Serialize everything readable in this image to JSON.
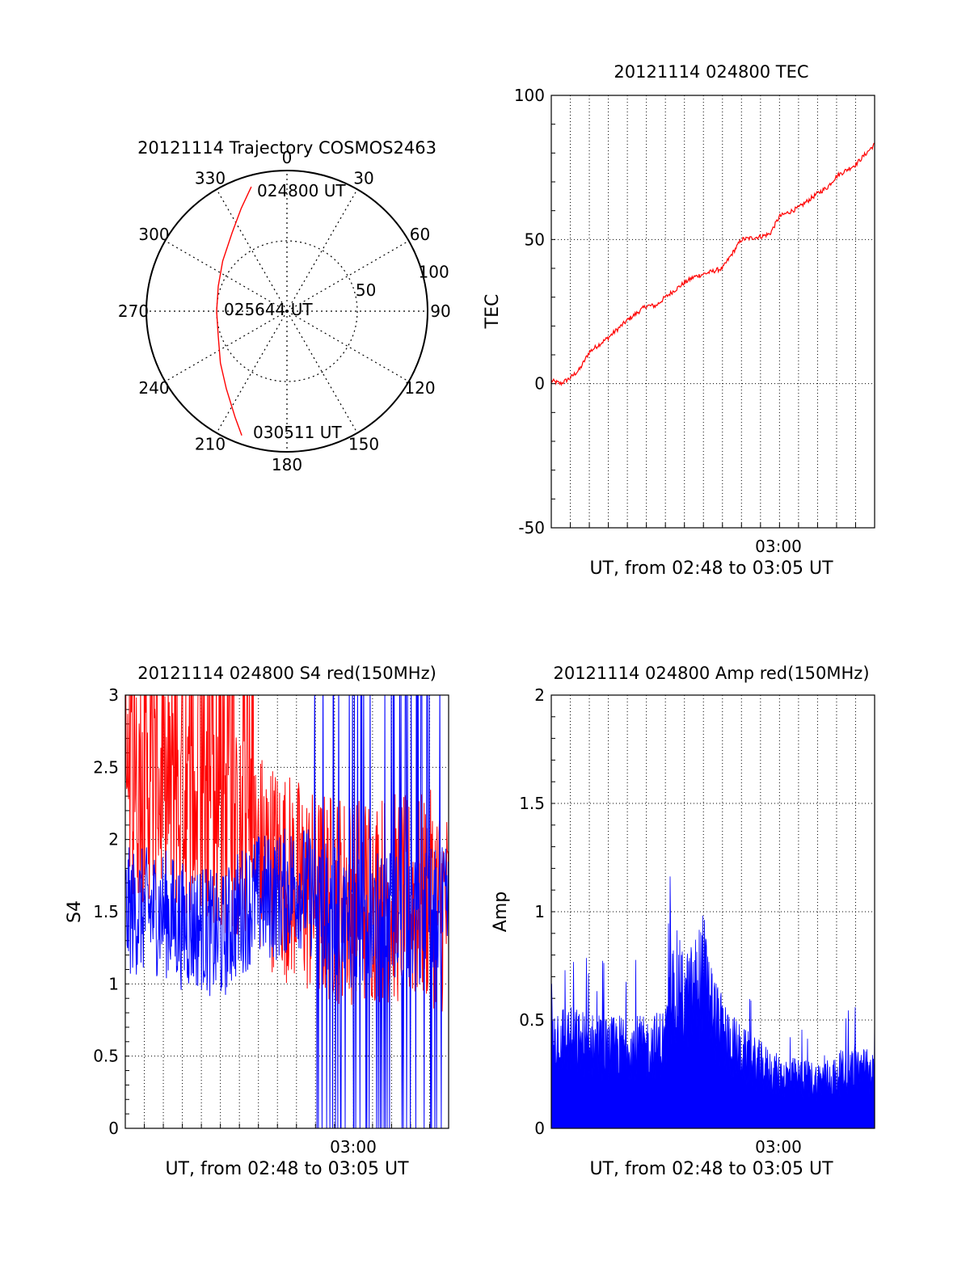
{
  "chart_data": [
    {
      "id": "trajectory",
      "type": "polar",
      "title": "20121114 Trajectory COSMOS2463",
      "azimuth_labels": [
        "0",
        "30",
        "60",
        "90",
        "120",
        "150",
        "180",
        "210",
        "240",
        "270",
        "300",
        "330"
      ],
      "radial_labels": [
        "50",
        "100"
      ],
      "radial_max": 100,
      "annotations": [
        "024800 UT",
        "025644 UT",
        "030511 UT"
      ],
      "track_color": "#ff0000",
      "track": [
        {
          "az": 344,
          "r": 92
        },
        {
          "az": 336,
          "r": 80
        },
        {
          "az": 325,
          "r": 68
        },
        {
          "az": 308,
          "r": 58
        },
        {
          "az": 290,
          "r": 52
        },
        {
          "az": 270,
          "r": 50
        },
        {
          "az": 250,
          "r": 52
        },
        {
          "az": 232,
          "r": 60
        },
        {
          "az": 218,
          "r": 70
        },
        {
          "az": 206,
          "r": 84
        },
        {
          "az": 200,
          "r": 94
        }
      ]
    },
    {
      "id": "tec",
      "type": "line",
      "title": "20121114 024800 TEC",
      "xlabel": "UT, from 02:48 to 03:05 UT",
      "ylabel": "TEC",
      "xlim": [
        "02:48",
        "03:05"
      ],
      "ylim": [
        -50,
        100
      ],
      "yticks": [
        "100",
        "50",
        "0",
        "-50"
      ],
      "xtick_label": "03:00",
      "grid": true,
      "series": [
        {
          "color": "#ff0000",
          "x": [
            "02:48",
            "02:48:30",
            "02:49",
            "02:49:30",
            "02:50",
            "02:51",
            "02:52",
            "02:53",
            "02:53:30",
            "02:54",
            "02:55",
            "02:55:30",
            "02:56",
            "02:57",
            "02:57:30",
            "02:58",
            "02:59",
            "02:59:30",
            "03:00",
            "03:01",
            "03:02",
            "03:02:30",
            "03:03",
            "03:04",
            "03:05"
          ],
          "values": [
            1,
            0,
            2,
            5,
            11,
            16,
            22,
            27,
            27,
            30,
            35,
            37,
            38,
            40,
            45,
            50,
            51,
            52,
            58,
            61,
            66,
            68,
            72,
            76,
            83
          ]
        }
      ]
    },
    {
      "id": "s4",
      "type": "line",
      "title": "20121114 024800 S4 red(150MHz)",
      "xlabel": "UT, from 02:48 to 03:05 UT",
      "ylabel": "S4",
      "xlim": [
        "02:48",
        "03:05"
      ],
      "ylim": [
        0,
        3
      ],
      "yticks": [
        "3",
        "2.5",
        "2",
        "1.5",
        "1",
        "0.5",
        "0"
      ],
      "xtick_label": "03:00",
      "grid": true,
      "series": [
        {
          "color": "#ff0000",
          "x": [
            "02:48",
            "02:49",
            "02:50",
            "02:51",
            "02:52",
            "02:53",
            "02:54",
            "02:55",
            "02:56",
            "02:57",
            "02:58",
            "02:59",
            "03:00",
            "03:01",
            "03:02",
            "03:03",
            "03:04",
            "03:05"
          ],
          "values": [
            2.4,
            2.3,
            2.3,
            2.2,
            2.2,
            2.1,
            2.0,
            1.9,
            1.8,
            1.7,
            1.6,
            1.6,
            1.6,
            1.6,
            1.6,
            1.55,
            1.6,
            1.5
          ]
        },
        {
          "color": "#0000ff",
          "x": [
            "02:48",
            "02:49",
            "02:50",
            "02:51",
            "02:52",
            "02:53",
            "02:54",
            "02:55",
            "02:56",
            "02:57",
            "02:58",
            "02:59",
            "03:00",
            "03:01",
            "03:02",
            "03:03",
            "03:04",
            "03:05"
          ],
          "values": [
            1.5,
            1.5,
            1.5,
            1.4,
            1.4,
            1.3,
            1.5,
            1.6,
            1.6,
            1.7,
            1.6,
            1.5,
            1.4,
            1.5,
            1.5,
            1.4,
            1.5,
            1.5
          ]
        }
      ]
    },
    {
      "id": "amp",
      "type": "area",
      "title": "20121114 024800 Amp red(150MHz)",
      "xlabel": "UT, from 02:48 to 03:05 UT",
      "ylabel": "Amp",
      "xlim": [
        "02:48",
        "03:05"
      ],
      "ylim": [
        0,
        2
      ],
      "yticks": [
        "2",
        "1.5",
        "1",
        "0.5",
        "0"
      ],
      "xtick_label": "03:00",
      "grid": true,
      "series": [
        {
          "color": "#0000ff",
          "x": [
            "02:48",
            "02:49",
            "02:50",
            "02:51",
            "02:52",
            "02:53",
            "02:54",
            "02:54:30",
            "02:55",
            "02:55:30",
            "02:56",
            "02:56:30",
            "02:57",
            "02:58",
            "02:59",
            "03:00",
            "03:01",
            "03:02",
            "03:03",
            "03:04",
            "03:05"
          ],
          "values": [
            0.45,
            0.42,
            0.4,
            0.38,
            0.4,
            0.38,
            0.42,
            0.7,
            0.6,
            0.65,
            0.75,
            0.55,
            0.45,
            0.35,
            0.3,
            0.25,
            0.24,
            0.23,
            0.25,
            0.3,
            0.25
          ]
        }
      ]
    }
  ]
}
